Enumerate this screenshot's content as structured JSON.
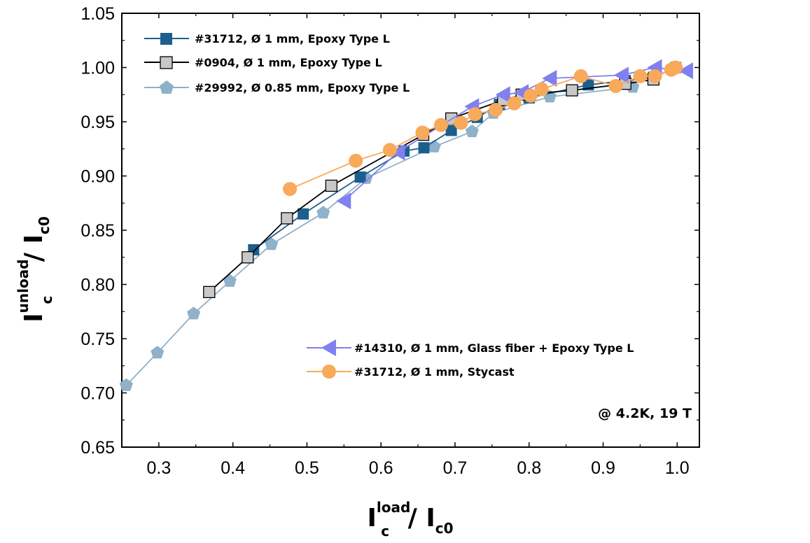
{
  "chart_data": {
    "type": "line",
    "xlim": [
      0.25,
      1.03
    ],
    "ylim": [
      0.65,
      1.05
    ],
    "x_ticks": [
      0.3,
      0.4,
      0.5,
      0.6,
      0.7,
      0.8,
      0.9,
      1.0
    ],
    "x_tick_labels": [
      "0.3",
      "0.4",
      "0.5",
      "0.6",
      "0.7",
      "0.8",
      "0.9",
      "1.0"
    ],
    "y_ticks": [
      0.65,
      0.7,
      0.75,
      0.8,
      0.85,
      0.9,
      0.95,
      1.0,
      1.05
    ],
    "y_tick_labels": [
      "0.65",
      "0.70",
      "0.75",
      "0.80",
      "0.85",
      "0.90",
      "0.95",
      "1.00",
      "1.05"
    ],
    "xlabel": {
      "main": "I",
      "sup": "load",
      "sub": "c",
      "tail": " / I",
      "tail_sub": "c0"
    },
    "ylabel": {
      "main": "I",
      "sup": "unload",
      "sub": "c",
      "tail": " / I",
      "tail_sub": "c0"
    },
    "annotation": "@ 4.2K, 19 T",
    "grid": false,
    "legend_placement": [
      "top-left",
      "bottom-right"
    ],
    "series": [
      {
        "name": "#31712, Ø 1 mm, Epoxy Type L",
        "color": "#1c5f8c",
        "marker": "square-filled",
        "x": [
          0.428,
          0.495,
          0.572,
          0.631,
          0.658,
          0.695,
          0.73,
          0.76,
          0.8,
          0.88,
          0.93,
          0.968,
          0.998
        ],
        "y": [
          0.832,
          0.865,
          0.899,
          0.923,
          0.926,
          0.942,
          0.954,
          0.966,
          0.972,
          0.984,
          0.988,
          0.991,
          1.0
        ]
      },
      {
        "name": "#0904, Ø 1 mm, Epoxy Type L",
        "color": "#000000",
        "marker": "square-open",
        "x": [
          0.368,
          0.42,
          0.473,
          0.533,
          0.657,
          0.695,
          0.765,
          0.79,
          0.858,
          0.93,
          0.968
        ],
        "y": [
          0.793,
          0.825,
          0.861,
          0.891,
          0.938,
          0.953,
          0.97,
          0.975,
          0.979,
          0.985,
          0.989
        ]
      },
      {
        "name": "#29992, Ø 0.85 mm, Epoxy Type L",
        "color": "#8fb1c9",
        "marker": "pentagon-filled",
        "x": [
          0.256,
          0.298,
          0.347,
          0.396,
          0.452,
          0.522,
          0.58,
          0.672,
          0.723,
          0.752,
          0.828,
          0.94
        ],
        "y": [
          0.707,
          0.737,
          0.773,
          0.803,
          0.837,
          0.866,
          0.898,
          0.927,
          0.941,
          0.958,
          0.973,
          0.982
        ]
      },
      {
        "name": "#14310, Ø 1 mm, Glass fiber + Epoxy Type L",
        "color": "#8080f0",
        "marker": "triangle-left-filled",
        "x": [
          0.55,
          0.623,
          0.723,
          0.765,
          0.79,
          0.828,
          0.925,
          0.97,
          1.012
        ],
        "y": [
          0.877,
          0.922,
          0.964,
          0.975,
          0.977,
          0.99,
          0.993,
          1.0,
          0.997
        ]
      },
      {
        "name": "#31712, Ø 1 mm, Stycast",
        "color": "#f8a95a",
        "marker": "circle-filled",
        "x": [
          0.477,
          0.566,
          0.612,
          0.656,
          0.681,
          0.708,
          0.727,
          0.755,
          0.78,
          0.802,
          0.817,
          0.87,
          0.917,
          0.95,
          0.97,
          0.992,
          0.998
        ],
        "y": [
          0.888,
          0.914,
          0.924,
          0.94,
          0.947,
          0.949,
          0.957,
          0.961,
          0.967,
          0.974,
          0.98,
          0.992,
          0.983,
          0.992,
          0.992,
          0.998,
          1.0
        ]
      }
    ]
  }
}
